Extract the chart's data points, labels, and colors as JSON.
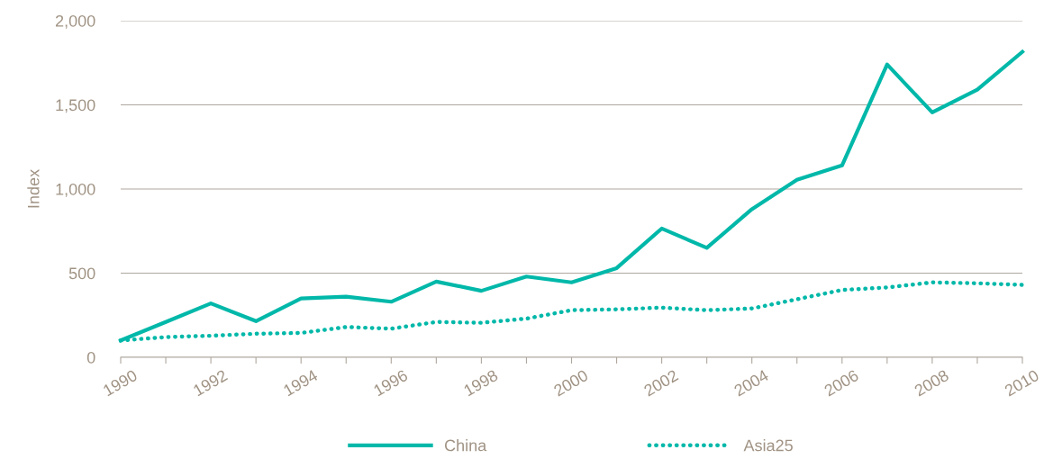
{
  "chart_data": {
    "type": "line",
    "ylabel": "Index",
    "x": [
      1990,
      1991,
      1992,
      1993,
      1994,
      1995,
      1996,
      1997,
      1998,
      1999,
      2000,
      2001,
      2002,
      2003,
      2004,
      2005,
      2006,
      2007,
      2008,
      2009,
      2010
    ],
    "series": [
      {
        "name": "China",
        "color": "#00b8a9",
        "line_style": "solid",
        "values": [
          100,
          210,
          320,
          215,
          350,
          360,
          330,
          450,
          395,
          480,
          445,
          530,
          765,
          650,
          880,
          1055,
          1140,
          1740,
          1455,
          1590,
          1815
        ]
      },
      {
        "name": "Asia25",
        "color": "#00b8a9",
        "line_style": "dotted",
        "values": [
          100,
          120,
          128,
          140,
          145,
          180,
          170,
          210,
          205,
          230,
          280,
          285,
          295,
          280,
          290,
          345,
          400,
          415,
          445,
          440,
          430
        ]
      }
    ],
    "xlim": [
      1990,
      2010
    ],
    "xticks": [
      1990,
      {
        "value": 1991,
        "label": null
      },
      1992,
      {
        "value": 1993,
        "label": null
      },
      1994,
      {
        "value": 1995,
        "label": null
      },
      1996,
      {
        "value": 1997,
        "label": null
      },
      1998,
      {
        "value": 1999,
        "label": null
      },
      2000,
      {
        "value": 2001,
        "label": null
      },
      2002,
      {
        "value": 2003,
        "label": null
      },
      2004,
      {
        "value": 2005,
        "label": null
      },
      2006,
      {
        "value": 2007,
        "label": null
      },
      2008,
      {
        "value": 2009,
        "label": null
      },
      2010
    ],
    "ylim": [
      0,
      2000
    ],
    "yticks": [
      0,
      {
        "value": 500,
        "label": "500"
      },
      {
        "value": 1000,
        "label": "1,000"
      },
      {
        "value": 1500,
        "label": "1,500"
      },
      {
        "value": 2000,
        "label": "2,000"
      }
    ],
    "grid": "y",
    "legend": "bottom",
    "marker": "none"
  }
}
